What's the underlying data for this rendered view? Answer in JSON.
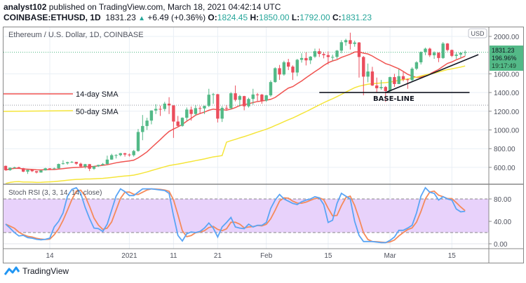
{
  "header": {
    "author": "analyst102",
    "published": "published on TradingView.com, March 18, 2021 04:42:14 UTC",
    "symbol": "COINBASE:ETHUSD, 1D",
    "last": "1831.23",
    "change": "+6.49 (+0.36%)",
    "o_label": "O:",
    "o": "1824.45",
    "h_label": "H:",
    "h": "1850.00",
    "l_label": "L:",
    "l": "1792.00",
    "c_label": "C:",
    "c": "1831.23",
    "up_icon": "triangle-up"
  },
  "footer": {
    "brand": "TradingView",
    "logo_icon": "tradingview-cloud-logo"
  },
  "colors": {
    "up": "#53b987",
    "down": "#eb4d5c",
    "sma14": "#f05350",
    "sma50": "#f5e53a",
    "stoch_k": "#5aa5f5",
    "stoch_d": "#f58a5a",
    "stoch_band": "#e8d2fb",
    "price_box": "#53b987"
  },
  "chart_data": [
    {
      "type": "candlestick",
      "title": "Ethereum / U.S. Dollar, 1D, COINBASE",
      "currency_badge": "USD",
      "ylim": [
        470,
        2100
      ],
      "grid": true,
      "y_ticks": [
        "600.00",
        "800.00",
        "1000.00",
        "1200.00",
        "1400.00",
        "1600.00",
        "2000.00"
      ],
      "y_tick_values": [
        600,
        800,
        1000,
        1200,
        1400,
        1600,
        2000
      ],
      "x_ticks": [
        {
          "label": "14",
          "date": "2020-12-14"
        },
        {
          "label": "2021",
          "date": "2021-01-01"
        },
        {
          "label": "11",
          "date": "2021-01-11"
        },
        {
          "label": "21",
          "date": "2021-01-21"
        },
        {
          "label": "Feb",
          "date": "2021-02-01"
        },
        {
          "label": "15",
          "date": "2021-02-15"
        },
        {
          "label": "Mar",
          "date": "2021-03-01"
        },
        {
          "label": "15",
          "date": "2021-03-15"
        }
      ],
      "price_label": {
        "price": "1831.23",
        "percent": "196.96%",
        "countdown": "19:17:49",
        "value": 1831.23
      },
      "reference_level": 1265,
      "annotations": {
        "sma14_label": "14-day SMA",
        "sma50_label": "50-day SMA",
        "baseline_label": "BASE-LINE",
        "baseline": {
          "value": 1400,
          "from": "2021-02-13",
          "to": "2021-03-19"
        },
        "trendline": {
          "from": [
            "2021-02-28",
            1400
          ],
          "to": [
            "2021-03-21",
            1805
          ]
        }
      },
      "moving_averages": [
        {
          "name": "14-day SMA",
          "period": 14
        },
        {
          "name": "50-day SMA",
          "period": 50
        }
      ],
      "columns": [
        "date",
        "open",
        "high",
        "low",
        "close"
      ],
      "candles": [
        [
          "2020-12-04",
          616,
          619,
          565,
          570
        ],
        [
          "2020-12-05",
          570,
          598,
          563,
          596
        ],
        [
          "2020-12-06",
          596,
          606,
          587,
          601
        ],
        [
          "2020-12-07",
          601,
          606,
          584,
          591
        ],
        [
          "2020-12-08",
          591,
          594,
          549,
          554
        ],
        [
          "2020-12-09",
          554,
          575,
          530,
          573
        ],
        [
          "2020-12-10",
          573,
          575,
          550,
          559
        ],
        [
          "2020-12-11",
          559,
          560,
          535,
          545
        ],
        [
          "2020-12-12",
          545,
          570,
          544,
          568
        ],
        [
          "2020-12-13",
          568,
          595,
          566,
          590
        ],
        [
          "2020-12-14",
          590,
          592,
          576,
          586
        ],
        [
          "2020-12-15",
          586,
          597,
          580,
          589
        ],
        [
          "2020-12-16",
          589,
          640,
          586,
          636
        ],
        [
          "2020-12-17",
          636,
          676,
          630,
          643
        ],
        [
          "2020-12-18",
          643,
          660,
          630,
          655
        ],
        [
          "2020-12-19",
          655,
          667,
          648,
          658
        ],
        [
          "2020-12-20",
          658,
          659,
          627,
          639
        ],
        [
          "2020-12-21",
          639,
          650,
          600,
          609
        ],
        [
          "2020-12-22",
          609,
          637,
          588,
          634
        ],
        [
          "2020-12-23",
          634,
          636,
          560,
          585
        ],
        [
          "2020-12-24",
          585,
          615,
          573,
          612
        ],
        [
          "2020-12-25",
          612,
          628,
          605,
          626
        ],
        [
          "2020-12-26",
          626,
          646,
          620,
          636
        ],
        [
          "2020-12-27",
          636,
          725,
          630,
          683
        ],
        [
          "2020-12-28",
          683,
          745,
          680,
          730
        ],
        [
          "2020-12-29",
          730,
          740,
          695,
          731
        ],
        [
          "2020-12-30",
          731,
          755,
          718,
          751
        ],
        [
          "2020-12-31",
          751,
          755,
          715,
          737
        ],
        [
          "2021-01-01",
          737,
          748,
          715,
          730
        ],
        [
          "2021-01-02",
          730,
          787,
          715,
          775
        ],
        [
          "2021-01-03",
          775,
          1010,
          768,
          978
        ],
        [
          "2021-01-04",
          978,
          1160,
          890,
          1042
        ],
        [
          "2021-01-05",
          1042,
          1130,
          1000,
          1100
        ],
        [
          "2021-01-06",
          1100,
          1210,
          1060,
          1208
        ],
        [
          "2021-01-07",
          1208,
          1275,
          1170,
          1225
        ],
        [
          "2021-01-08",
          1225,
          1260,
          1150,
          1224
        ],
        [
          "2021-01-09",
          1224,
          1300,
          1200,
          1281
        ],
        [
          "2021-01-10",
          1281,
          1350,
          1170,
          1262
        ],
        [
          "2021-01-11",
          1262,
          1265,
          915,
          1090
        ],
        [
          "2021-01-12",
          1090,
          1150,
          1030,
          1043
        ],
        [
          "2021-01-13",
          1043,
          1135,
          1035,
          1130
        ],
        [
          "2021-01-14",
          1130,
          1240,
          1100,
          1218
        ],
        [
          "2021-01-15",
          1218,
          1250,
          1100,
          1171
        ],
        [
          "2021-01-16",
          1171,
          1265,
          1155,
          1233
        ],
        [
          "2021-01-17",
          1233,
          1255,
          1170,
          1230
        ],
        [
          "2021-01-18",
          1230,
          1260,
          1170,
          1257
        ],
        [
          "2021-01-19",
          1257,
          1440,
          1245,
          1377
        ],
        [
          "2021-01-20",
          1377,
          1395,
          1280,
          1382
        ],
        [
          "2021-01-21",
          1382,
          1385,
          1080,
          1121
        ],
        [
          "2021-01-22",
          1121,
          1255,
          1085,
          1236
        ],
        [
          "2021-01-23",
          1236,
          1265,
          1205,
          1232
        ],
        [
          "2021-01-24",
          1232,
          1405,
          1220,
          1392
        ],
        [
          "2021-01-25",
          1392,
          1475,
          1305,
          1322
        ],
        [
          "2021-01-26",
          1322,
          1375,
          1250,
          1362
        ],
        [
          "2021-01-27",
          1362,
          1365,
          1210,
          1253
        ],
        [
          "2021-01-28",
          1253,
          1345,
          1240,
          1331
        ],
        [
          "2021-01-29",
          1331,
          1440,
          1270,
          1379
        ],
        [
          "2021-01-30",
          1379,
          1395,
          1310,
          1378
        ],
        [
          "2021-01-31",
          1378,
          1385,
          1280,
          1314
        ],
        [
          "2021-02-01",
          1314,
          1375,
          1300,
          1370
        ],
        [
          "2021-02-02",
          1370,
          1530,
          1355,
          1512
        ],
        [
          "2021-02-03",
          1512,
          1670,
          1505,
          1660
        ],
        [
          "2021-02-04",
          1660,
          1695,
          1535,
          1593
        ],
        [
          "2021-02-05",
          1593,
          1740,
          1580,
          1724
        ],
        [
          "2021-02-06",
          1724,
          1760,
          1640,
          1677
        ],
        [
          "2021-02-07",
          1677,
          1690,
          1535,
          1614
        ],
        [
          "2021-02-08",
          1614,
          1760,
          1575,
          1750
        ],
        [
          "2021-02-09",
          1750,
          1820,
          1720,
          1769
        ],
        [
          "2021-02-10",
          1769,
          1830,
          1690,
          1744
        ],
        [
          "2021-02-11",
          1744,
          1790,
          1705,
          1784
        ],
        [
          "2021-02-12",
          1784,
          1870,
          1770,
          1842
        ],
        [
          "2021-02-13",
          1842,
          1870,
          1780,
          1812
        ],
        [
          "2021-02-14",
          1812,
          1830,
          1765,
          1800
        ],
        [
          "2021-02-15",
          1800,
          1840,
          1700,
          1780
        ],
        [
          "2021-02-16",
          1780,
          1805,
          1740,
          1781
        ],
        [
          "2021-02-17",
          1781,
          1855,
          1760,
          1848
        ],
        [
          "2021-02-18",
          1848,
          1960,
          1820,
          1938
        ],
        [
          "2021-02-19",
          1938,
          1975,
          1900,
          1960
        ],
        [
          "2021-02-20",
          1960,
          2040,
          1860,
          1920
        ],
        [
          "2021-02-21",
          1920,
          1955,
          1890,
          1935
        ],
        [
          "2021-02-22",
          1935,
          1940,
          1560,
          1780
        ],
        [
          "2021-02-23",
          1780,
          1790,
          1370,
          1570
        ],
        [
          "2021-02-24",
          1570,
          1710,
          1510,
          1625
        ],
        [
          "2021-02-25",
          1625,
          1675,
          1470,
          1475
        ],
        [
          "2021-02-26",
          1475,
          1560,
          1400,
          1446
        ],
        [
          "2021-02-27",
          1446,
          1535,
          1430,
          1459
        ],
        [
          "2021-02-28",
          1459,
          1470,
          1300,
          1416
        ],
        [
          "2021-03-01",
          1416,
          1570,
          1405,
          1565
        ],
        [
          "2021-03-02",
          1565,
          1600,
          1460,
          1491
        ],
        [
          "2021-03-03",
          1491,
          1650,
          1490,
          1575
        ],
        [
          "2021-03-04",
          1575,
          1620,
          1520,
          1541
        ],
        [
          "2021-03-05",
          1541,
          1550,
          1440,
          1533
        ],
        [
          "2021-03-06",
          1533,
          1670,
          1525,
          1655
        ],
        [
          "2021-03-07",
          1655,
          1735,
          1640,
          1723
        ],
        [
          "2021-03-08",
          1723,
          1840,
          1700,
          1834
        ],
        [
          "2021-03-09",
          1834,
          1880,
          1800,
          1869
        ],
        [
          "2021-03-10",
          1869,
          1880,
          1780,
          1799
        ],
        [
          "2021-03-11",
          1799,
          1840,
          1760,
          1826
        ],
        [
          "2021-03-12",
          1826,
          1830,
          1725,
          1769
        ],
        [
          "2021-03-13",
          1769,
          1940,
          1760,
          1924
        ],
        [
          "2021-03-14",
          1924,
          1930,
          1840,
          1855
        ],
        [
          "2021-03-15",
          1855,
          1860,
          1780,
          1792
        ],
        [
          "2021-03-16",
          1792,
          1830,
          1760,
          1806
        ],
        [
          "2021-03-17",
          1806,
          1830,
          1770,
          1825
        ],
        [
          "2021-03-18",
          1824.45,
          1850,
          1792,
          1831.23
        ]
      ]
    },
    {
      "type": "line",
      "title": "Stoch RSI (3, 3, 14, 14, close)",
      "ylim": [
        -5,
        105
      ],
      "y_ticks": [
        "0.00",
        "40.00",
        "80.00"
      ],
      "y_tick_values": [
        0,
        40,
        80
      ],
      "bands": {
        "upper": 80,
        "lower": 20
      },
      "series": [
        {
          "name": "K",
          "values": [
            35,
            28,
            20,
            14,
            15,
            11,
            10,
            8,
            7,
            8,
            10,
            30,
            40,
            55,
            85,
            97,
            100,
            90,
            65,
            45,
            28,
            27,
            22,
            35,
            60,
            85,
            98,
            93,
            86,
            86,
            92,
            98,
            98,
            98,
            97,
            96,
            95,
            90,
            50,
            15,
            5,
            18,
            21,
            20,
            22,
            28,
            37,
            28,
            12,
            30,
            38,
            47,
            30,
            28,
            27,
            35,
            30,
            33,
            33,
            38,
            63,
            78,
            88,
            80,
            76,
            72,
            70,
            75,
            78,
            80,
            84,
            82,
            70,
            38,
            42,
            72,
            90,
            85,
            80,
            40,
            15,
            4,
            4,
            4,
            3,
            2,
            2,
            6,
            12,
            24,
            24,
            28,
            33,
            55,
            85,
            100,
            92,
            90,
            78,
            84,
            80,
            78,
            62,
            57,
            58
          ]
        }
      ]
    }
  ]
}
